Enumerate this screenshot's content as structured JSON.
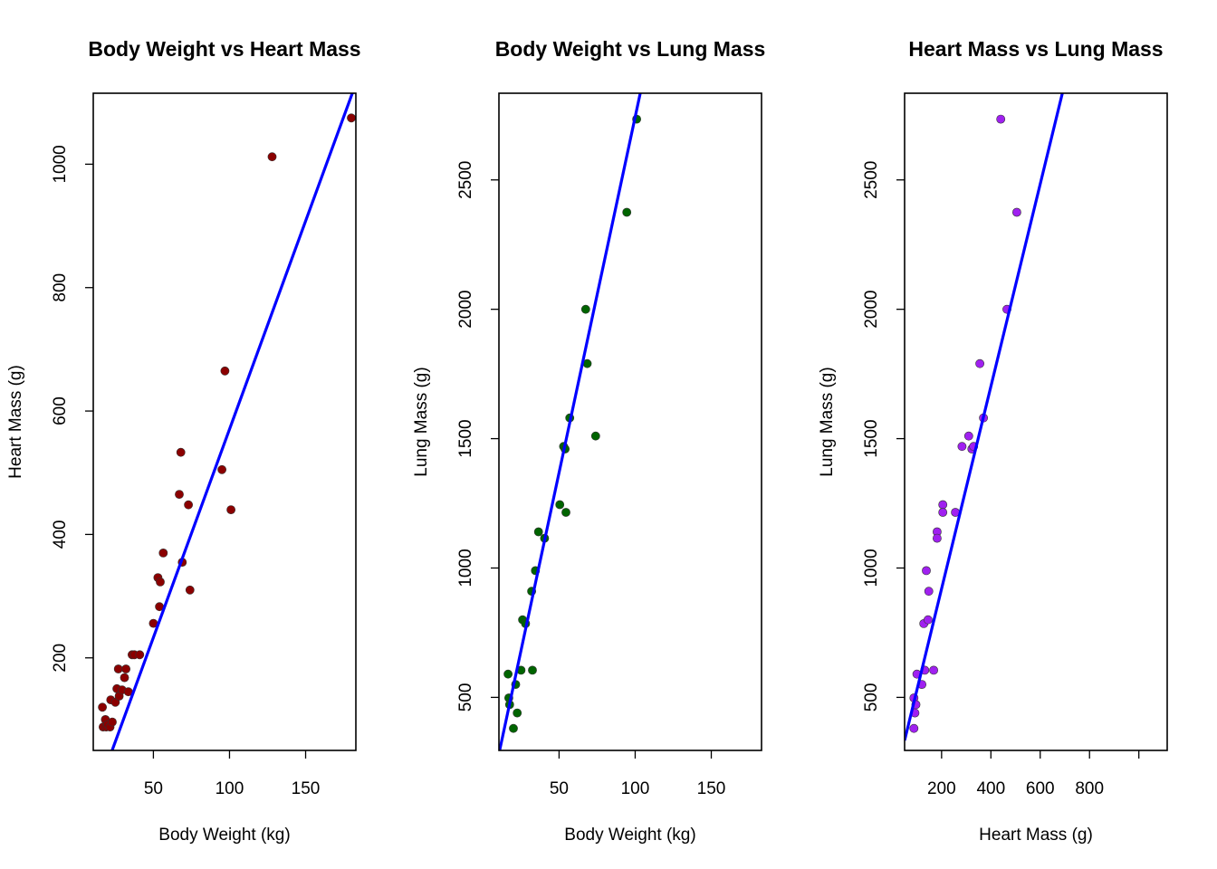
{
  "colors": {
    "fit_line": "#0000ff",
    "frame": "#000000",
    "background": "#ffffff"
  },
  "chart_data": [
    {
      "type": "scatter",
      "title": "Body Weight vs Heart Mass",
      "xlabel": "Body Weight (kg)",
      "ylabel": "Heart Mass (g)",
      "xlim": [
        10.5,
        183
      ],
      "ylim": [
        50,
        1115
      ],
      "xticks": [
        50,
        100,
        150
      ],
      "yticks": [
        200,
        400,
        600,
        800,
        1000
      ],
      "point_color": "#8b0000",
      "fit_line": {
        "intercept": -104.5,
        "slope": 6.75,
        "color": "#0000ff"
      },
      "series": [
        {
          "x": [
            16.5,
            17,
            18.5,
            19,
            20,
            21.5,
            22,
            23,
            25,
            26,
            27,
            27.5,
            29.5,
            31,
            32,
            33.5,
            36,
            37.5,
            41,
            50,
            53,
            54,
            54.5,
            56.5,
            67,
            68,
            69,
            73,
            74,
            95,
            97,
            101,
            128,
            180
          ],
          "y": [
            120,
            88,
            100,
            88,
            92,
            88,
            132,
            96,
            128,
            150,
            182,
            138,
            148,
            168,
            182,
            145,
            205,
            205,
            205,
            256,
            330,
            283,
            323,
            370,
            465,
            533,
            355,
            448,
            310,
            505,
            665,
            440,
            1012,
            1075
          ]
        }
      ]
    },
    {
      "type": "scatter",
      "title": "Body Weight vs Lung Mass",
      "xlabel": "Body Weight (kg)",
      "ylabel": "Lung Mass (g)",
      "xlim": [
        10.5,
        183
      ],
      "ylim": [
        295,
        2835
      ],
      "xticks": [
        50,
        100,
        150
      ],
      "yticks": [
        500,
        1000,
        1500,
        2000,
        2500
      ],
      "point_color": "#006400",
      "fit_line": {
        "intercept": -6.5,
        "slope": 27.5,
        "color": "#0000ff"
      },
      "series": [
        {
          "x": [
            16.5,
            17,
            17.5,
            20,
            21.5,
            22.5,
            25,
            26,
            28,
            32,
            32.5,
            34.5,
            36.5,
            40.5,
            50.5,
            53,
            54,
            54.5,
            57,
            67.5,
            68.5,
            74,
            94.5,
            101
          ],
          "y": [
            590,
            498,
            472,
            380,
            550,
            440,
            605,
            800,
            785,
            910,
            605,
            990,
            1140,
            1115,
            1245,
            1470,
            1460,
            1215,
            1580,
            2000,
            1790,
            1510,
            2375,
            2735
          ]
        }
      ]
    },
    {
      "type": "scatter",
      "title": "Heart Mass vs Lung Mass",
      "xlabel": "Heart Mass (g)",
      "ylabel": "Lung Mass (g)",
      "xlim": [
        50,
        1115
      ],
      "ylim": [
        295,
        2835
      ],
      "xticks": [
        200,
        400,
        600,
        800
      ],
      "yticks": [
        500,
        1000,
        1500,
        2000,
        2500
      ],
      "point_color": "#a020f0",
      "fit_line": {
        "intercept": 138,
        "slope": 3.91,
        "color": "#0000ff"
      },
      "series": [
        {
          "x": [
            88,
            88,
            92,
            96,
            100,
            120,
            128,
            132,
            138,
            145,
            148,
            168,
            182,
            182,
            205,
            205,
            256,
            283,
            310,
            323,
            330,
            355,
            370,
            440,
            465,
            505
          ],
          "y": [
            380,
            498,
            440,
            472,
            590,
            550,
            785,
            605,
            990,
            800,
            910,
            605,
            1140,
            1115,
            1245,
            1215,
            1215,
            1470,
            1510,
            1460,
            1470,
            1790,
            1580,
            2735,
            2000,
            2375
          ]
        }
      ]
    }
  ]
}
